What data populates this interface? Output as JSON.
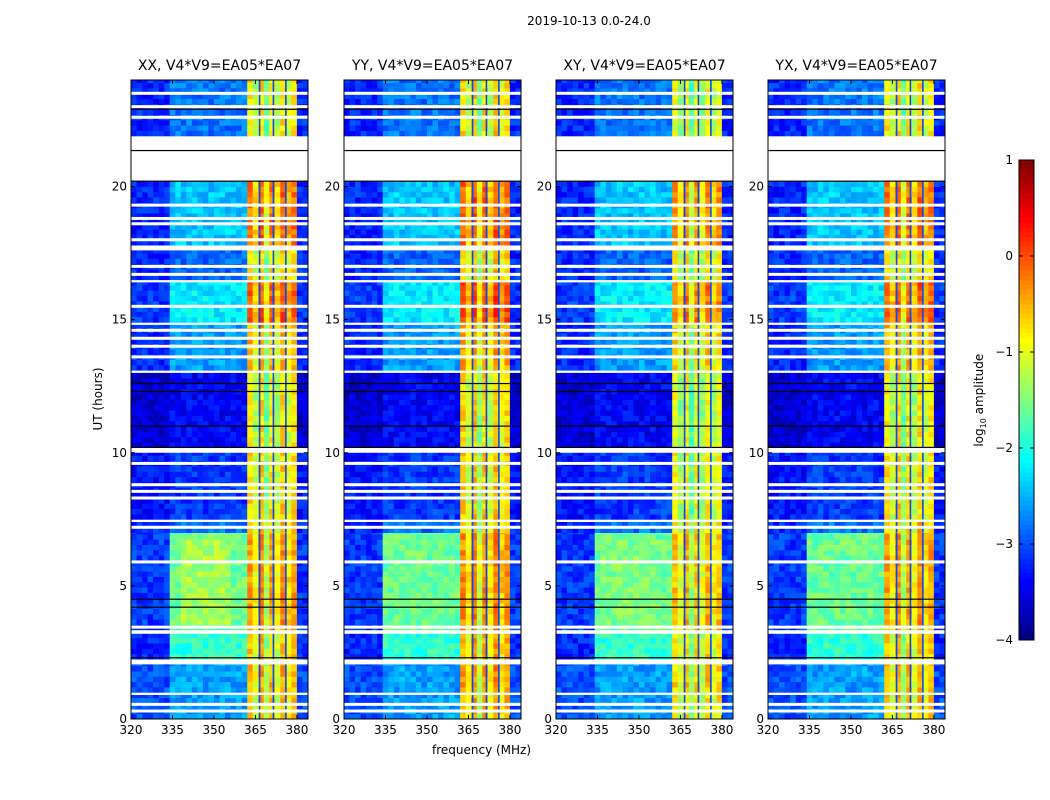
{
  "chart_data": {
    "type": "heatmap",
    "title": "2019-10-13 0.0-24.0",
    "xlabel": "frequency (MHz)",
    "ylabel": "UT (hours)",
    "xlim": [
      320,
      384
    ],
    "ylim": [
      0,
      24
    ],
    "xticks": [
      320,
      335,
      350,
      365,
      380
    ],
    "yticks": [
      0,
      5,
      10,
      15,
      20
    ],
    "colorbar": {
      "label_prefix": "log",
      "label_sub": "10",
      "label_suffix": " amplitude",
      "range": [
        -4,
        1
      ],
      "ticks": [
        1,
        0,
        -1,
        -2,
        -3,
        -4
      ],
      "tick_labels": [
        "1",
        "0",
        "−1",
        "−2",
        "−3",
        "−4"
      ],
      "colormap": "jet"
    },
    "frequency_regions_MHz": [
      [
        320,
        335
      ],
      [
        335,
        362
      ],
      [
        362,
        380
      ],
      [
        380,
        384
      ]
    ],
    "rfi_band_channel_offsets": [
      0.3,
      -0.2,
      0.4,
      -0.5,
      0.3,
      -0.2,
      0.4,
      0.0,
      0.3
    ],
    "rfi_band_dark_channels_MHz": [
      366.5,
      371.5,
      376.0
    ],
    "time_segments": [
      {
        "t": [
          0.0,
          0.9
        ],
        "levels": [
          -3.0,
          -2.6,
          -1.0,
          -3.0
        ]
      },
      {
        "t": [
          1.0,
          2.05
        ],
        "levels": [
          -3.0,
          -2.6,
          -0.9,
          -3.0
        ]
      },
      {
        "t": [
          2.25,
          3.2
        ],
        "levels": [
          -3.2,
          -1.9,
          -1.0,
          -3.2
        ]
      },
      {
        "t": [
          3.35,
          7.0
        ],
        "levels": [
          -3.1,
          -1.6,
          -0.8,
          -3.1
        ]
      },
      {
        "t": [
          7.0,
          7.4
        ],
        "levels": [
          -3.2,
          -2.8,
          -1.0,
          -3.2
        ]
      },
      {
        "t": [
          7.5,
          10.0
        ],
        "levels": [
          -3.3,
          -3.1,
          -1.1,
          -3.3
        ]
      },
      {
        "t": [
          10.2,
          13.0
        ],
        "levels": [
          -3.6,
          -3.4,
          -1.2,
          -3.6
        ]
      },
      {
        "t": [
          13.1,
          14.8
        ],
        "levels": [
          -3.2,
          -2.6,
          -0.9,
          -3.2
        ]
      },
      {
        "t": [
          14.9,
          16.4
        ],
        "levels": [
          -3.1,
          -2.2,
          -0.5,
          -3.1
        ]
      },
      {
        "t": [
          16.5,
          17.6
        ],
        "levels": [
          -3.2,
          -2.9,
          -1.1,
          -3.2
        ]
      },
      {
        "t": [
          17.8,
          20.2
        ],
        "levels": [
          -3.2,
          -2.4,
          -0.6,
          -3.2
        ]
      },
      {
        "t": [
          21.9,
          24.0
        ],
        "levels": [
          -3.2,
          -2.8,
          -1.2,
          -3.2
        ]
      }
    ],
    "flagged_hours": [
      0.3,
      0.55,
      3.45,
      5.9,
      7.2,
      8.3,
      8.55,
      8.8,
      9.6,
      13.6,
      14.0,
      14.3,
      14.6,
      15.5,
      16.7,
      17.0,
      18.0,
      18.6,
      18.8,
      19.3,
      22.6,
      23.0,
      23.5
    ],
    "dark_lines_hours": [
      2.3,
      4.2,
      4.5,
      10.2,
      11.0,
      12.3,
      12.6,
      20.2,
      21.35,
      22.9
    ],
    "panels": [
      {
        "title": "XX, V4*V9=EA05*EA07",
        "band_offset": 0.1,
        "hotspot": {
          "freq": [
            338,
            356
          ],
          "t": [
            3.5,
            6.8
          ],
          "level": -1.3
        }
      },
      {
        "title": "YY, V4*V9=EA05*EA07",
        "band_offset": 0.2,
        "hotspot": {
          "freq": [
            338,
            358
          ],
          "t": [
            3.5,
            6.8
          ],
          "level": -2.0
        }
      },
      {
        "title": "XY, V4*V9=EA05*EA07",
        "band_offset": -0.05,
        "hotspot": {
          "freq": [
            336,
            358
          ],
          "t": [
            3.5,
            6.8
          ],
          "level": -1.5
        }
      },
      {
        "title": "YX, V4*V9=EA05*EA07",
        "band_offset": 0.1,
        "hotspot": {
          "freq": [
            338,
            358
          ],
          "t": [
            3.5,
            6.8
          ],
          "level": -2.0
        }
      }
    ]
  }
}
